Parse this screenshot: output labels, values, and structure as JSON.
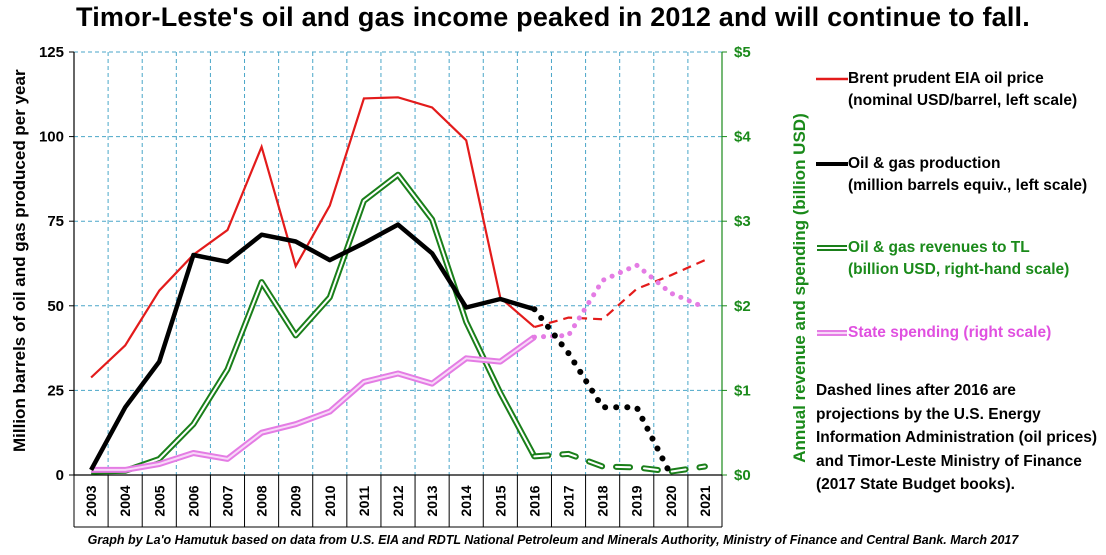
{
  "title": "Timor-Leste's oil and gas income peaked in 2012 and will continue to fall.",
  "credit": "Graph by La'o Hamutuk based on data from U.S. EIA and RDTL National Petroleum and Minerals Authority, Ministry of Finance and Central Bank.  March 2017",
  "note": "Dashed lines after 2016 are projections by the U.S. Energy Information Administration (oil prices) and Timor-Leste Ministry of Finance (2017 State Budget books).",
  "colors": {
    "oil_price": "#e31b1b",
    "production": "#000000",
    "revenues": "#1a7f1a",
    "spending": "#e47ce4",
    "grid": "#4aa6c8",
    "right_axis": "#1a8a1a"
  },
  "chart_data": {
    "type": "line",
    "x": [
      2003,
      2004,
      2005,
      2006,
      2007,
      2008,
      2009,
      2010,
      2011,
      2012,
      2013,
      2014,
      2015,
      2016,
      2017,
      2018,
      2019,
      2020,
      2021
    ],
    "x_tick_labels": [
      "2003",
      "2004",
      "2005",
      "2006",
      "2007",
      "2008",
      "2009",
      "2010",
      "2011",
      "2012",
      "2013",
      "2014",
      "2015",
      "2016",
      "2017",
      "2018",
      "2019",
      "2020",
      "2021"
    ],
    "ylabel": "Million barrels of oil and gas produced per year",
    "y2label": "Annual revenue and spending (billion USD)",
    "ylim": [
      0,
      125
    ],
    "y2lim": [
      0,
      5
    ],
    "y_ticks": [
      "0",
      "25",
      "50",
      "75",
      "100",
      "125"
    ],
    "y2_ticks": [
      "$0",
      "$1",
      "$2",
      "$3",
      "$4",
      "$5"
    ],
    "grid": true,
    "legend_position": "right",
    "projection_start": 2016,
    "series": [
      {
        "key": "oil_price",
        "name": "Brent prudent EIA oil price",
        "name_line2": "(nominal USD/barrel, left scale)",
        "axis": "left",
        "style": "solid-then-dashed",
        "values": [
          28.8,
          38.3,
          54.5,
          65.1,
          72.4,
          97.0,
          61.7,
          79.6,
          111.3,
          111.6,
          108.6,
          98.9,
          52.4,
          43.7,
          46.5,
          46.0,
          55.0,
          59.0,
          63.5
        ]
      },
      {
        "key": "production",
        "name": "Oil & gas production",
        "name_line2": "(million barrels equiv., left scale)",
        "axis": "left",
        "style": "solid-then-dotted",
        "values": [
          1.5,
          20,
          33.5,
          65,
          63,
          71,
          69,
          63.5,
          68.5,
          74,
          65.5,
          49.5,
          52,
          49,
          36,
          20,
          20,
          0,
          null
        ]
      },
      {
        "key": "revenues",
        "name": "Oil & gas revenues to TL",
        "name_line2": "(billion USD, right-hand scale)",
        "axis": "right",
        "style": "double-then-dashed",
        "values": [
          0.04,
          0.05,
          0.19,
          0.6,
          1.25,
          2.28,
          1.65,
          2.1,
          3.24,
          3.55,
          3.02,
          1.81,
          0.97,
          0.22,
          0.25,
          0.1,
          0.09,
          0.04,
          0.1
        ]
      },
      {
        "key": "spending",
        "name": "State spending (right scale)",
        "name_line2": "",
        "axis": "right",
        "style": "double-then-dotted",
        "values": [
          0.06,
          0.06,
          0.13,
          0.26,
          0.19,
          0.5,
          0.6,
          0.75,
          1.1,
          1.2,
          1.08,
          1.38,
          1.34,
          1.63,
          1.65,
          2.3,
          2.48,
          2.15,
          1.98
        ]
      }
    ]
  }
}
